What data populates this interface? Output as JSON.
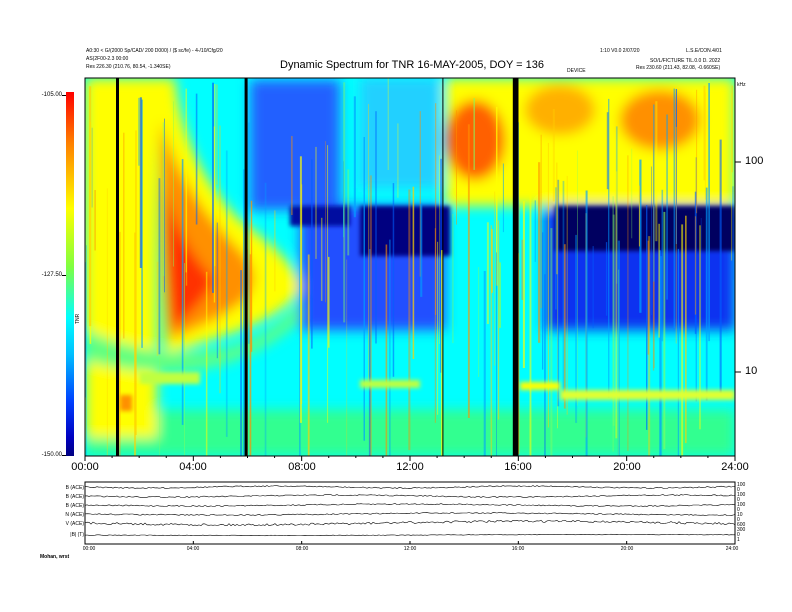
{
  "header": {
    "top_left_line1": "A0:30 < G/(2000 Sp/CAD/ 200 D000) / ($ sc/fe) - 4-/10/Cfg/20",
    "top_left_line2": "AS(2F00-2.3 00:00",
    "top_left_line3": "Res 226.30 (210.76, 80.54, -1.340SE)",
    "top_right_line1": "1:10 V0.0 2/07/20",
    "top_right_line2": "L.S.E/CON.4/01",
    "top_right_line3": "SO/L/FICTURE TIL.0.0 D. 2022",
    "top_right_line4": "Res 230.60 (211.43, 82.08, -0.660SE)",
    "top_center_small": "DEVICE",
    "top_far_right": "kHz"
  },
  "chart_data": {
    "type": "heatmap",
    "title": "Dynamic Spectrum for TNR 16-MAY-2005, DOY = 136",
    "xlabel": "",
    "ylabel": "",
    "x_ticks": [
      "00:00",
      "04:00",
      "08:00",
      "12:00",
      "16:00",
      "20:00",
      "24:00"
    ],
    "x_range_hours": [
      0,
      24
    ],
    "y_scale": "log",
    "y_unit": "kHz",
    "y_ticks": [
      "100",
      "10"
    ],
    "colorbar": {
      "label": "TNR",
      "ticks": [
        "-105.00",
        "-127.50",
        "-150.00"
      ],
      "range": [
        -150,
        -105
      ],
      "colors": [
        "#ff0000",
        "#ff8000",
        "#ffff00",
        "#00ffff",
        "#0000ff",
        "#000080"
      ]
    },
    "data_gaps_hours": [
      1.2,
      5.95,
      13.25,
      15.85,
      15.95
    ]
  },
  "timeseries": {
    "labels": [
      "B (ACE)",
      "B (ACE)",
      "B (ACE)",
      "N (ACE)",
      "V (ACE)",
      "|B| (T)"
    ],
    "right_labels": [
      "100",
      "0",
      "100",
      "0",
      "100",
      "0",
      "10",
      "0",
      "600",
      "300",
      "0",
      "1"
    ],
    "x_ticks": [
      "00:00",
      "04:00",
      "08:00",
      "12:00",
      "16:00",
      "20:00",
      "24:00"
    ],
    "footer": "Mohan, wrst"
  }
}
